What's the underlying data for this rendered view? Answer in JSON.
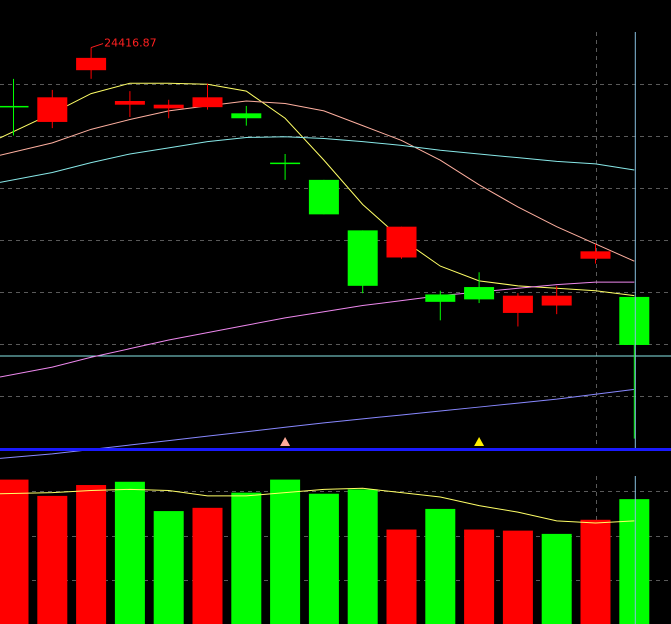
{
  "chart_data": [
    {
      "type": "candlestick",
      "colors": {
        "up": "#00ff00",
        "down": "#ff0000"
      },
      "annotation": {
        "text": "24416.87",
        "candle_index": 2,
        "value": 24416.87,
        "color": "#ff2020"
      },
      "ylim": [
        22800,
        24480
      ],
      "candles": [
        {
          "open": 24180,
          "close": 24180,
          "high": 24290,
          "low": 24060
        },
        {
          "open": 24215,
          "close": 24115,
          "high": 24245,
          "low": 24090
        },
        {
          "open": 24375,
          "close": 24325,
          "high": 24416.87,
          "low": 24290
        },
        {
          "open": 24200,
          "close": 24185,
          "high": 24240,
          "low": 24135
        },
        {
          "open": 24185,
          "close": 24170,
          "high": 24205,
          "low": 24130
        },
        {
          "open": 24215,
          "close": 24175,
          "high": 24270,
          "low": 24165
        },
        {
          "open": 24130,
          "close": 24150,
          "high": 24180,
          "low": 24100
        },
        {
          "open": 23950,
          "close": 23950,
          "high": 23985,
          "low": 23880
        },
        {
          "open": 23740,
          "close": 23880,
          "high": 23880,
          "low": 23740
        },
        {
          "open": 23450,
          "close": 23675,
          "high": 23675,
          "low": 23420
        },
        {
          "open": 23690,
          "close": 23565,
          "high": 23690,
          "low": 23560
        },
        {
          "open": 23385,
          "close": 23415,
          "high": 23430,
          "low": 23310
        },
        {
          "open": 23395,
          "close": 23445,
          "high": 23505,
          "low": 23380
        },
        {
          "open": 23410,
          "close": 23340,
          "high": 23420,
          "low": 23285
        },
        {
          "open": 23410,
          "close": 23370,
          "high": 23450,
          "low": 23335
        },
        {
          "open": 23590,
          "close": 23560,
          "high": 23620,
          "low": 23540
        },
        {
          "open": 23210,
          "close": 23405,
          "high": 23405,
          "low": 22830
        }
      ],
      "series": [
        {
          "color": "#ffff66",
          "values": [
            24050,
            24150,
            24230,
            24272,
            24272,
            24268,
            24240,
            24130,
            23960,
            23780,
            23640,
            23530,
            23470,
            23450,
            23440,
            23430,
            23410
          ]
        },
        {
          "color": "#ffb0a0",
          "values": [
            23980,
            24030,
            24085,
            24125,
            24160,
            24180,
            24200,
            24190,
            24160,
            24100,
            24040,
            23960,
            23860,
            23770,
            23690,
            23620,
            23550
          ]
        },
        {
          "color": "#88e8e8",
          "values": [
            23870,
            23910,
            23950,
            23985,
            24010,
            24035,
            24052,
            24055,
            24048,
            24035,
            24020,
            24000,
            23985,
            23970,
            23955,
            23945,
            23920
          ]
        },
        {
          "color": "#ee88ee",
          "values": [
            23080,
            23120,
            23160,
            23195,
            23230,
            23260,
            23290,
            23320,
            23345,
            23370,
            23390,
            23410,
            23425,
            23440,
            23455,
            23465,
            23465
          ]
        },
        {
          "color": "#8888ff",
          "values": [
            22750,
            22768,
            22786,
            22804,
            22822,
            22840,
            22858,
            22876,
            22894,
            22910,
            22926,
            22942,
            22958,
            22974,
            22990,
            23010,
            23030
          ]
        }
      ],
      "horizontal_line": {
        "value": 23165,
        "color": "#88e8e8"
      },
      "markers": [
        {
          "candle_index": 7,
          "shape": "triangle",
          "color": "#ffaa99"
        },
        {
          "candle_index": 12,
          "shape": "triangle",
          "color": "#ffee00"
        }
      ],
      "vertical_line": {
        "candle_index": 16,
        "color": "#88c0e0"
      }
    },
    {
      "type": "bar",
      "ylim": [
        0,
        140
      ],
      "values": [
        133,
        118,
        128,
        131,
        104,
        107,
        121,
        133,
        120,
        124,
        87,
        106,
        87,
        86,
        83,
        96,
        115
      ],
      "colors": [
        "#ff0000",
        "#ff0000",
        "#ff0000",
        "#00ff00",
        "#00ff00",
        "#ff0000",
        "#00ff00",
        "#00ff00",
        "#00ff00",
        "#00ff00",
        "#ff0000",
        "#00ff00",
        "#ff0000",
        "#ff0000",
        "#00ff00",
        "#ff0000",
        "#00ff00"
      ],
      "series": [
        {
          "color": "#ffff66",
          "values": [
            120,
            121,
            123,
            124,
            123,
            118,
            118,
            121,
            124,
            125,
            121,
            117,
            109,
            103,
            95,
            93,
            95
          ]
        }
      ]
    }
  ]
}
